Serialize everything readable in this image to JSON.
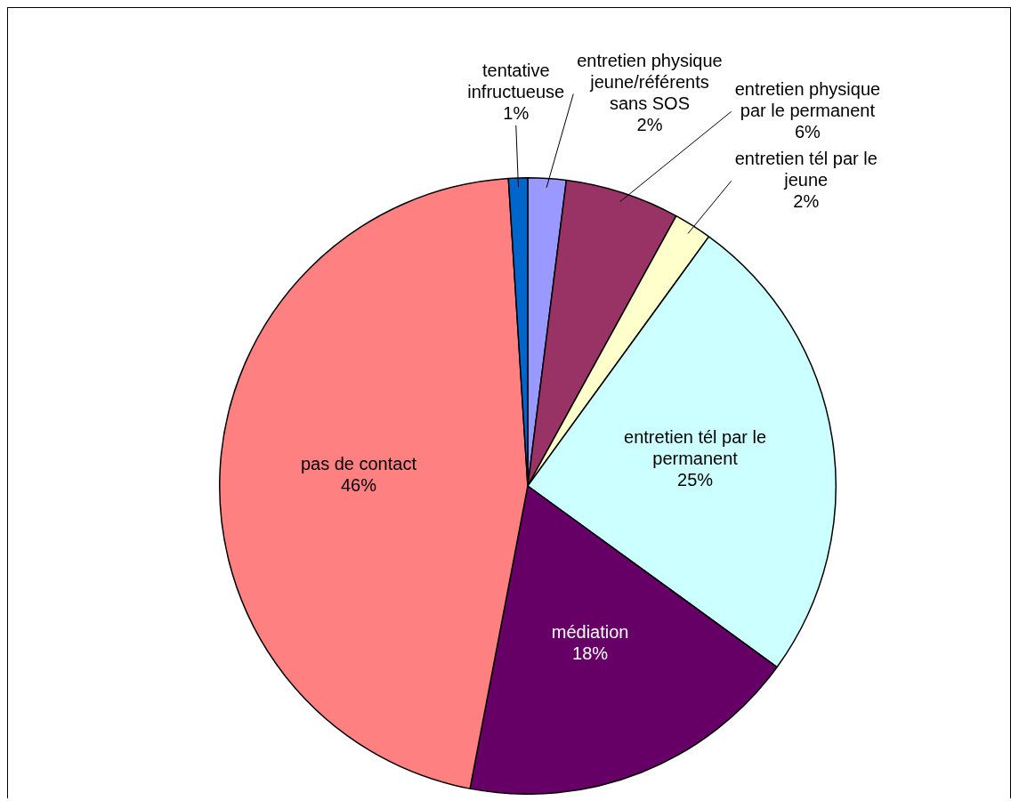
{
  "chart_data": {
    "type": "pie",
    "categories": [
      "entretien physique jeune/référents sans SOS",
      "entretien physique par le permanent",
      "entretien tél par le jeune",
      "entretien tél par le permanent",
      "médiation",
      "pas de contact",
      "tentative infructueuse"
    ],
    "values": [
      2,
      6,
      2,
      25,
      18,
      46,
      1
    ],
    "value_labels": [
      "2%",
      "6%",
      "2%",
      "25%",
      "18%",
      "46%",
      "1%"
    ],
    "colors": [
      "#9999ff",
      "#993366",
      "#ffffcc",
      "#ccffff",
      "#660066",
      "#ff8080",
      "#0066cc"
    ],
    "data_labels": true,
    "legend": false
  }
}
